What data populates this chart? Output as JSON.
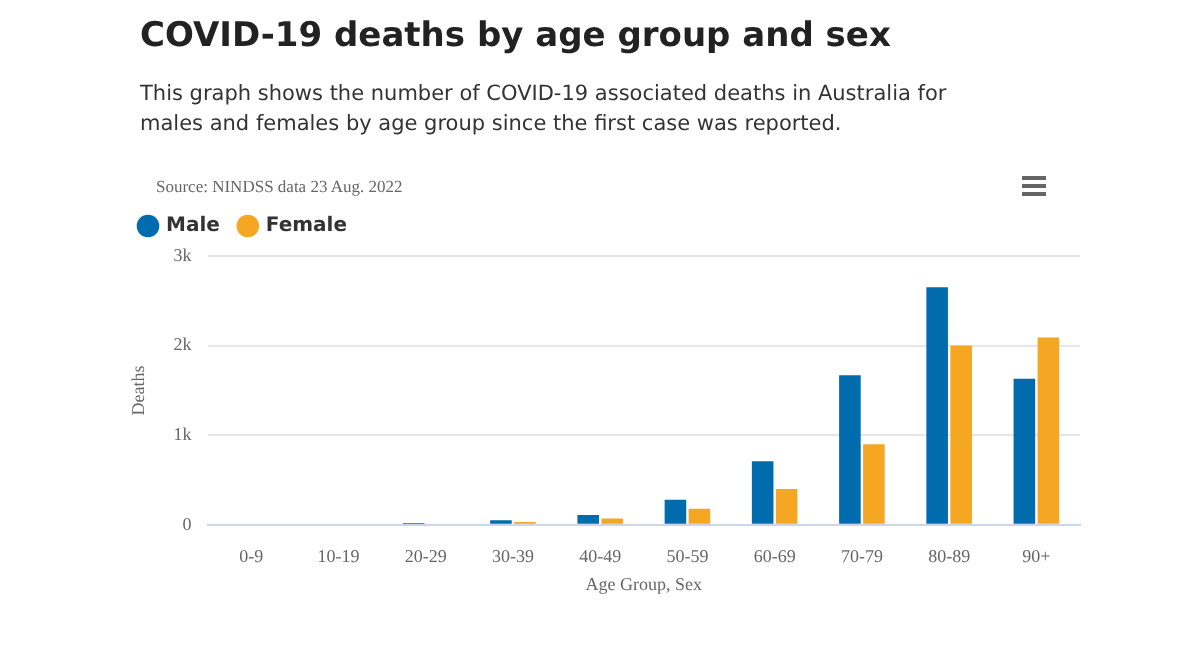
{
  "chart_data": {
    "type": "bar",
    "title": "COVID-19 deaths by age group and sex",
    "subtitle": "This graph shows the number of COVID-19 associated deaths in Australia for males and females by age group since the first case was reported.",
    "annotations": [
      "Source: NINDSS data 23 Aug. 2022"
    ],
    "xlabel": "Age Group, Sex",
    "ylabel": "Deaths",
    "categories": [
      "0-9",
      "10-19",
      "20-29",
      "30-39",
      "40-49",
      "50-59",
      "60-69",
      "70-79",
      "80-89",
      "90+"
    ],
    "series": [
      {
        "name": "Male",
        "color": "#006cae",
        "values": [
          null,
          null,
          20,
          50,
          110,
          280,
          710,
          1670,
          2650,
          1630
        ]
      },
      {
        "name": "Female",
        "color": "#f5a623",
        "values": [
          null,
          null,
          null,
          30,
          70,
          180,
          400,
          900,
          2000,
          2090
        ]
      }
    ],
    "ylim": [
      0,
      3000
    ],
    "yticks": [
      {
        "value": 0,
        "label": "0"
      },
      {
        "value": 1000,
        "label": "1k"
      },
      {
        "value": 2000,
        "label": "2k"
      },
      {
        "value": 3000,
        "label": "3k"
      }
    ],
    "grid": "y",
    "legend": "top left"
  }
}
